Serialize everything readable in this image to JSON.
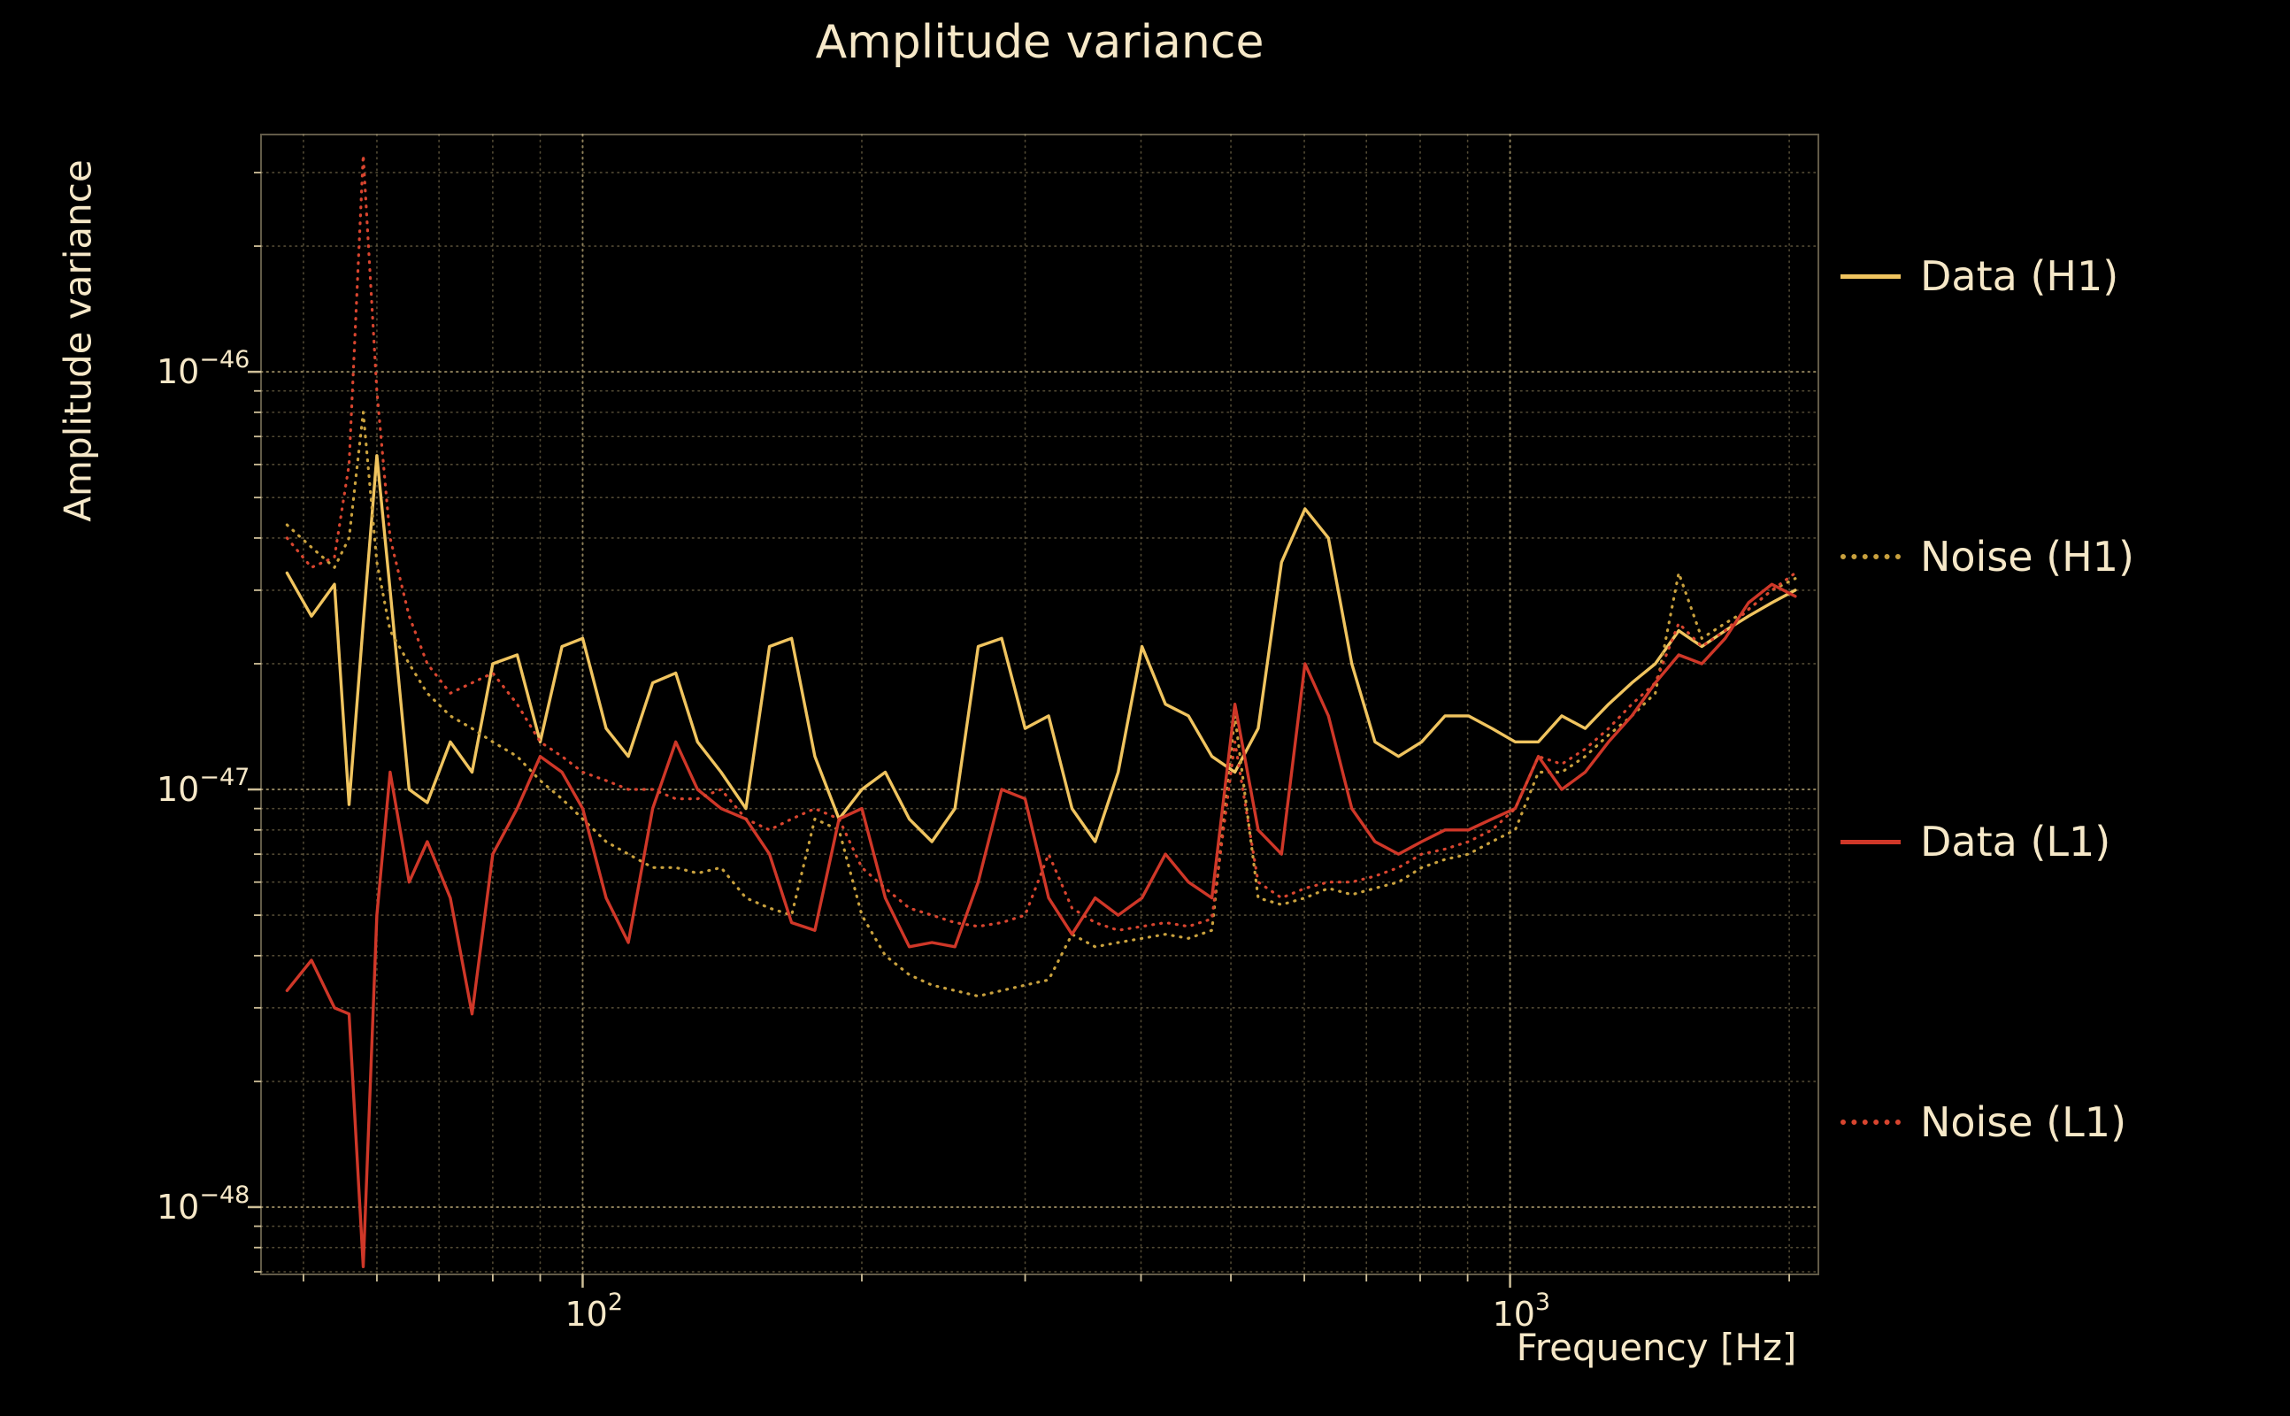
{
  "colors": {
    "background": "#000000",
    "text": "#f6e8c8",
    "grid": "#96875f",
    "axis": "#d9c9a0"
  },
  "chart_data": {
    "type": "line",
    "title": "Amplitude variance",
    "xlabel": "Frequency [Hz]",
    "ylabel": "Amplitude variance",
    "xscale": "log",
    "yscale": "log",
    "xlim": [
      45,
      2150
    ],
    "ylim": [
      6.9e-49,
      3.7e-46
    ],
    "grid": true,
    "legend_position": "right-outside",
    "x_ticks": [
      {
        "value": 100,
        "base": "10",
        "exp": "2"
      },
      {
        "value": 1000,
        "base": "10",
        "exp": "3"
      }
    ],
    "y_ticks": [
      {
        "value": 1e-46,
        "base": "10",
        "exp": "−46"
      },
      {
        "value": 1e-47,
        "base": "10",
        "exp": "−47"
      },
      {
        "value": 1e-48,
        "base": "10",
        "exp": "−48"
      }
    ],
    "x": [
      48,
      51,
      54,
      56,
      58,
      60,
      62,
      65,
      68,
      72,
      76,
      80,
      85,
      90,
      95,
      100,
      106,
      112,
      119,
      126,
      133,
      141,
      150,
      159,
      168,
      178,
      189,
      200,
      212,
      225,
      238,
      252,
      267,
      283,
      300,
      318,
      337,
      357,
      378,
      401,
      425,
      450,
      477,
      505,
      535,
      567,
      601,
      637,
      675,
      715,
      758,
      803,
      851,
      902,
      956,
      1013,
      1073,
      1137,
      1205,
      1277,
      1353,
      1434,
      1520,
      1610,
      1706,
      1808,
      1916,
      2030
    ],
    "series": [
      {
        "name": "Data (H1)",
        "color": "#f0c45f",
        "style": "solid",
        "values": [
          3.3e-47,
          2.6e-47,
          3.1e-47,
          9.2e-48,
          2.5e-47,
          6.3e-47,
          3e-47,
          1e-47,
          9.3e-48,
          1.3e-47,
          1.1e-47,
          2e-47,
          2.1e-47,
          1.3e-47,
          2.2e-47,
          2.3e-47,
          1.4e-47,
          1.2e-47,
          1.8e-47,
          1.9e-47,
          1.3e-47,
          1.1e-47,
          9e-48,
          2.2e-47,
          2.3e-47,
          1.2e-47,
          8.5e-48,
          1e-47,
          1.1e-47,
          8.5e-48,
          7.5e-48,
          9e-48,
          2.2e-47,
          2.3e-47,
          1.4e-47,
          1.5e-47,
          9e-48,
          7.5e-48,
          1.1e-47,
          2.2e-47,
          1.6e-47,
          1.5e-47,
          1.2e-47,
          1.1e-47,
          1.4e-47,
          3.5e-47,
          4.7e-47,
          4e-47,
          2e-47,
          1.3e-47,
          1.2e-47,
          1.3e-47,
          1.5e-47,
          1.5e-47,
          1.4e-47,
          1.3e-47,
          1.3e-47,
          1.5e-47,
          1.4e-47,
          1.6e-47,
          1.8e-47,
          2e-47,
          2.4e-47,
          2.2e-47,
          2.4e-47,
          2.6e-47,
          2.8e-47,
          3e-47
        ]
      },
      {
        "name": "Noise (H1)",
        "color": "#c9a13e",
        "style": "dotted",
        "values": [
          4.3e-47,
          3.8e-47,
          3.4e-47,
          4e-47,
          8e-47,
          3.5e-47,
          2.4e-47,
          2e-47,
          1.7e-47,
          1.5e-47,
          1.4e-47,
          1.3e-47,
          1.2e-47,
          1.05e-47,
          9.5e-48,
          8.5e-48,
          7.5e-48,
          7e-48,
          6.5e-48,
          6.5e-48,
          6.3e-48,
          6.5e-48,
          5.5e-48,
          5.2e-48,
          5e-48,
          8.5e-48,
          8e-48,
          5e-48,
          4e-48,
          3.6e-48,
          3.4e-48,
          3.3e-48,
          3.2e-48,
          3.3e-48,
          3.4e-48,
          3.5e-48,
          4.5e-48,
          4.2e-48,
          4.3e-48,
          4.4e-48,
          4.5e-48,
          4.4e-48,
          4.6e-48,
          1.5e-47,
          5.5e-48,
          5.3e-48,
          5.5e-48,
          5.8e-48,
          5.6e-48,
          5.8e-48,
          6e-48,
          6.5e-48,
          6.8e-48,
          7e-48,
          7.5e-48,
          8e-48,
          1.1e-47,
          1.1e-47,
          1.2e-47,
          1.35e-47,
          1.5e-47,
          1.7e-47,
          3.3e-47,
          2.3e-47,
          2.5e-47,
          2.7e-47,
          3e-47,
          3.2e-47
        ]
      },
      {
        "name": "Data (L1)",
        "color": "#cf3728",
        "style": "solid",
        "values": [
          3.3e-48,
          3.9e-48,
          3e-48,
          2.9e-48,
          7.2e-49,
          5e-48,
          1.1e-47,
          6e-48,
          7.5e-48,
          5.5e-48,
          2.9e-48,
          7e-48,
          9e-48,
          1.2e-47,
          1.1e-47,
          9e-48,
          5.5e-48,
          4.3e-48,
          9e-48,
          1.3e-47,
          1e-47,
          9e-48,
          8.5e-48,
          7e-48,
          4.8e-48,
          4.6e-48,
          8.5e-48,
          9e-48,
          5.5e-48,
          4.2e-48,
          4.3e-48,
          4.2e-48,
          6e-48,
          1e-47,
          9.5e-48,
          5.5e-48,
          4.5e-48,
          5.5e-48,
          5e-48,
          5.5e-48,
          7e-48,
          6e-48,
          5.5e-48,
          1.6e-47,
          8e-48,
          7e-48,
          2e-47,
          1.5e-47,
          9e-48,
          7.5e-48,
          7e-48,
          7.5e-48,
          8e-48,
          8e-48,
          8.5e-48,
          9e-48,
          1.2e-47,
          1e-47,
          1.1e-47,
          1.3e-47,
          1.5e-47,
          1.8e-47,
          2.1e-47,
          2e-47,
          2.3e-47,
          2.8e-47,
          3.1e-47,
          2.9e-47
        ]
      },
      {
        "name": "Noise (L1)",
        "color": "#d8452f",
        "style": "dotted",
        "values": [
          4e-47,
          3.4e-47,
          3.6e-47,
          6e-47,
          3.3e-46,
          9e-47,
          4e-47,
          2.6e-47,
          2e-47,
          1.7e-47,
          1.8e-47,
          1.9e-47,
          1.6e-47,
          1.3e-47,
          1.2e-47,
          1.1e-47,
          1.05e-47,
          1e-47,
          1e-47,
          9.5e-48,
          9.5e-48,
          1e-47,
          8.5e-48,
          8e-48,
          8.5e-48,
          9e-48,
          8.5e-48,
          6.5e-48,
          5.8e-48,
          5.2e-48,
          5e-48,
          4.8e-48,
          4.7e-48,
          4.8e-48,
          5e-48,
          7e-48,
          5.2e-48,
          4.8e-48,
          4.6e-48,
          4.7e-48,
          4.8e-48,
          4.7e-48,
          4.9e-48,
          1.3e-47,
          6e-48,
          5.5e-48,
          5.8e-48,
          6e-48,
          6e-48,
          6.2e-48,
          6.5e-48,
          7e-48,
          7.2e-48,
          7.5e-48,
          8e-48,
          9e-48,
          1.2e-47,
          1.15e-47,
          1.25e-47,
          1.4e-47,
          1.6e-47,
          1.8e-47,
          2.5e-47,
          2.2e-47,
          2.4e-47,
          2.7e-47,
          3e-47,
          3.3e-47
        ]
      }
    ]
  }
}
